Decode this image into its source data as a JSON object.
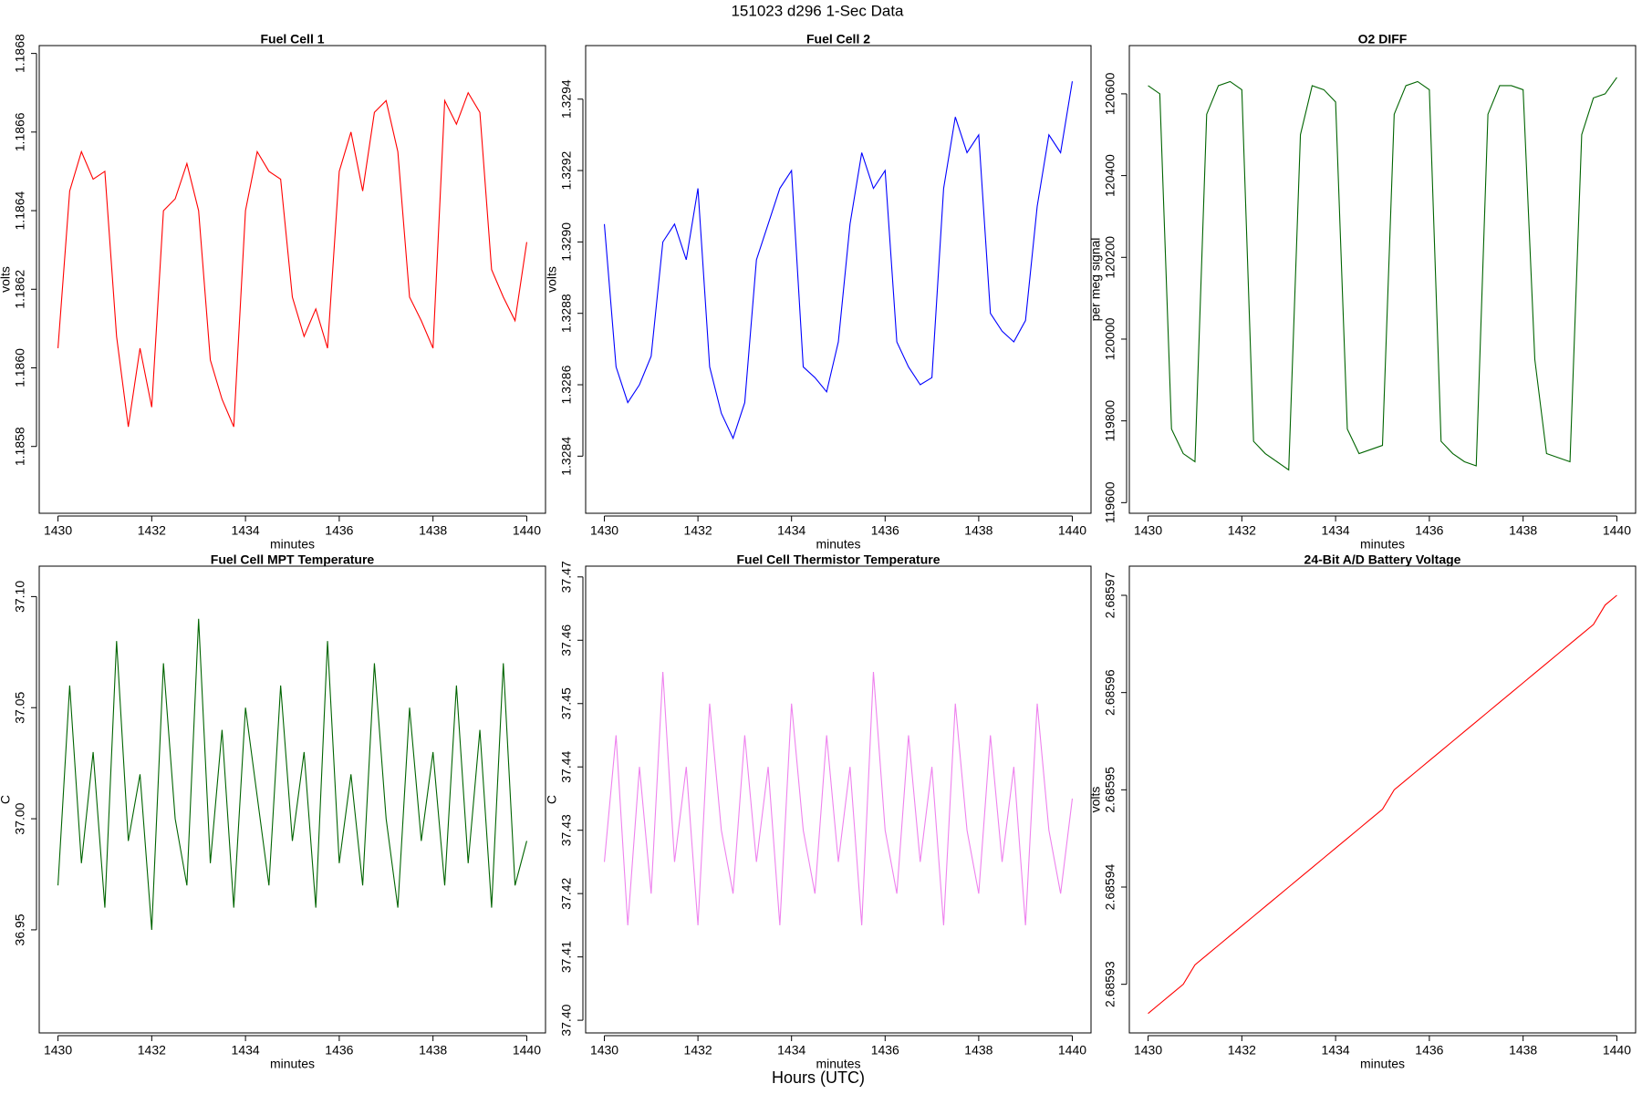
{
  "title": "151023   d296   1-Sec Data",
  "xlabel": "Hours (UTC)",
  "chart_data": [
    {
      "type": "line",
      "title": "Fuel Cell 1",
      "xlabel": "minutes",
      "ylabel": "volts",
      "color": "#ff0000",
      "x": [
        1430,
        1430.25,
        1430.5,
        1430.75,
        1431,
        1431.25,
        1431.5,
        1431.75,
        1432,
        1432.25,
        1432.5,
        1432.75,
        1433,
        1433.25,
        1433.5,
        1433.75,
        1434,
        1434.25,
        1434.5,
        1434.75,
        1435,
        1435.25,
        1435.5,
        1435.75,
        1436,
        1436.25,
        1436.5,
        1436.75,
        1437,
        1437.25,
        1437.5,
        1437.75,
        1438,
        1438.25,
        1438.5,
        1438.75,
        1439,
        1439.25,
        1439.5,
        1439.75,
        1440
      ],
      "values": [
        1.18605,
        1.18645,
        1.18655,
        1.18648,
        1.1865,
        1.18608,
        1.18585,
        1.18605,
        1.1859,
        1.1864,
        1.18643,
        1.18652,
        1.1864,
        1.18602,
        1.18592,
        1.18585,
        1.1864,
        1.18655,
        1.1865,
        1.18648,
        1.18618,
        1.18608,
        1.18615,
        1.18605,
        1.1865,
        1.1866,
        1.18645,
        1.18665,
        1.18668,
        1.18655,
        1.18618,
        1.18612,
        1.18605,
        1.18668,
        1.18662,
        1.1867,
        1.18665,
        1.18625,
        1.18618,
        1.18612,
        1.18632
      ],
      "xlim": [
        1429.6,
        1440.4
      ],
      "ylim": [
        1.18563,
        1.18682
      ],
      "xticks": [
        1430,
        1432,
        1434,
        1436,
        1438,
        1440
      ],
      "yticks": [
        1.1858,
        {
          "value": 1.186,
          "label": "1.1860"
        },
        1.1862,
        1.1864,
        1.1866,
        1.1868
      ]
    },
    {
      "type": "line",
      "title": "Fuel Cell 2",
      "xlabel": "minutes",
      "ylabel": "volts",
      "color": "#0000ff",
      "x": [
        1430,
        1430.25,
        1430.5,
        1430.75,
        1431,
        1431.25,
        1431.5,
        1431.75,
        1432,
        1432.25,
        1432.5,
        1432.75,
        1433,
        1433.25,
        1433.5,
        1433.75,
        1434,
        1434.25,
        1434.5,
        1434.75,
        1435,
        1435.25,
        1435.5,
        1435.75,
        1436,
        1436.25,
        1436.5,
        1436.75,
        1437,
        1437.25,
        1437.5,
        1437.75,
        1438,
        1438.25,
        1438.5,
        1438.75,
        1439,
        1439.25,
        1439.5,
        1439.75,
        1440
      ],
      "values": [
        1.32905,
        1.32865,
        1.32855,
        1.3286,
        1.32868,
        1.329,
        1.32905,
        1.32895,
        1.32915,
        1.32865,
        1.32852,
        1.32845,
        1.32855,
        1.32895,
        1.32905,
        1.32915,
        1.3292,
        1.32865,
        1.32862,
        1.32858,
        1.32872,
        1.32905,
        1.32925,
        1.32915,
        1.3292,
        1.32872,
        1.32865,
        1.3286,
        1.32862,
        1.32915,
        1.32935,
        1.32925,
        1.3293,
        1.3288,
        1.32875,
        1.32872,
        1.32878,
        1.3291,
        1.3293,
        1.32925,
        1.32945
      ],
      "xlim": [
        1429.6,
        1440.4
      ],
      "ylim": [
        1.32824,
        1.32955
      ],
      "xticks": [
        1430,
        1432,
        1434,
        1436,
        1438,
        1440
      ],
      "yticks": [
        1.3284,
        1.3286,
        1.3288,
        {
          "value": 1.329,
          "label": "1.3290"
        },
        1.3292,
        1.3294
      ]
    },
    {
      "type": "line",
      "title": "O2 DIFF",
      "xlabel": "minutes",
      "ylabel": "per meg signal",
      "color": "#006400",
      "x": [
        1430,
        1430.25,
        1430.5,
        1430.75,
        1431,
        1431.25,
        1431.5,
        1431.75,
        1432,
        1432.25,
        1432.5,
        1432.75,
        1433,
        1433.25,
        1433.5,
        1433.75,
        1434,
        1434.25,
        1434.5,
        1434.75,
        1435,
        1435.25,
        1435.5,
        1435.75,
        1436,
        1436.25,
        1436.5,
        1436.75,
        1437,
        1437.25,
        1437.5,
        1437.75,
        1438,
        1438.25,
        1438.5,
        1438.75,
        1439,
        1439.25,
        1439.5,
        1439.75,
        1440
      ],
      "values": [
        120620,
        120600,
        119780,
        119720,
        119700,
        120550,
        120620,
        120630,
        120610,
        119750,
        119720,
        119700,
        119680,
        120500,
        120620,
        120610,
        120580,
        119780,
        119720,
        119730,
        119740,
        120550,
        120620,
        120630,
        120610,
        119750,
        119720,
        119700,
        119690,
        120550,
        120620,
        120620,
        120610,
        119950,
        119720,
        119710,
        119700,
        120500,
        120590,
        120600,
        120640
      ],
      "xlim": [
        1429.6,
        1440.4
      ],
      "ylim": [
        119574,
        120718
      ],
      "xticks": [
        1430,
        1432,
        1434,
        1436,
        1438,
        1440
      ],
      "yticks": [
        119600,
        119800,
        120000,
        120200,
        120400,
        120600
      ]
    },
    {
      "type": "line",
      "title": "Fuel Cell MPT Temperature",
      "xlabel": "minutes",
      "ylabel": "C",
      "color": "#006400",
      "x": [
        1430,
        1430.25,
        1430.5,
        1430.75,
        1431,
        1431.25,
        1431.5,
        1431.75,
        1432,
        1432.25,
        1432.5,
        1432.75,
        1433,
        1433.25,
        1433.5,
        1433.75,
        1434,
        1434.25,
        1434.5,
        1434.75,
        1435,
        1435.25,
        1435.5,
        1435.75,
        1436,
        1436.25,
        1436.5,
        1436.75,
        1437,
        1437.25,
        1437.5,
        1437.75,
        1438,
        1438.25,
        1438.5,
        1438.75,
        1439,
        1439.25,
        1439.5,
        1439.75,
        1440
      ],
      "values": [
        36.97,
        37.06,
        36.98,
        37.03,
        36.96,
        37.08,
        36.99,
        37.02,
        36.95,
        37.07,
        37.0,
        36.97,
        37.09,
        36.98,
        37.04,
        36.96,
        37.05,
        37.01,
        36.97,
        37.06,
        36.99,
        37.03,
        36.96,
        37.08,
        36.98,
        37.02,
        36.97,
        37.07,
        37.0,
        36.96,
        37.05,
        36.99,
        37.03,
        36.97,
        37.06,
        36.98,
        37.04,
        36.96,
        37.07,
        36.97,
        36.99
      ],
      "xlim": [
        1429.6,
        1440.4
      ],
      "ylim": [
        36.9036,
        37.1137
      ],
      "xticks": [
        1430,
        1432,
        1434,
        1436,
        1438,
        1440
      ],
      "yticks": [
        36.95,
        {
          "value": 37,
          "label": "37.00"
        },
        37.05,
        {
          "value": 37.1,
          "label": "37.10"
        }
      ]
    },
    {
      "type": "line",
      "title": "Fuel Cell Thermistor Temperature",
      "xlabel": "minutes",
      "ylabel": "C",
      "color": "#ee82ee",
      "x": [
        1430,
        1430.25,
        1430.5,
        1430.75,
        1431,
        1431.25,
        1431.5,
        1431.75,
        1432,
        1432.25,
        1432.5,
        1432.75,
        1433,
        1433.25,
        1433.5,
        1433.75,
        1434,
        1434.25,
        1434.5,
        1434.75,
        1435,
        1435.25,
        1435.5,
        1435.75,
        1436,
        1436.25,
        1436.5,
        1436.75,
        1437,
        1437.25,
        1437.5,
        1437.75,
        1438,
        1438.25,
        1438.5,
        1438.75,
        1439,
        1439.25,
        1439.5,
        1439.75,
        1440
      ],
      "values": [
        37.425,
        37.445,
        37.415,
        37.44,
        37.42,
        37.455,
        37.425,
        37.44,
        37.415,
        37.45,
        37.43,
        37.42,
        37.445,
        37.425,
        37.44,
        37.415,
        37.45,
        37.43,
        37.42,
        37.445,
        37.425,
        37.44,
        37.415,
        37.455,
        37.43,
        37.42,
        37.445,
        37.425,
        37.44,
        37.415,
        37.45,
        37.43,
        37.42,
        37.445,
        37.425,
        37.44,
        37.415,
        37.45,
        37.43,
        37.42,
        37.435
      ],
      "xlim": [
        1429.6,
        1440.4
      ],
      "ylim": [
        37.398,
        37.4717
      ],
      "xticks": [
        1430,
        1432,
        1434,
        1436,
        1438,
        1440
      ],
      "yticks": [
        {
          "value": 37.4,
          "label": "37.40"
        },
        37.41,
        37.42,
        37.43,
        37.44,
        37.45,
        37.46,
        37.47
      ]
    },
    {
      "type": "line",
      "title": "24-Bit A/D Battery Voltage",
      "xlabel": "minutes",
      "ylabel": "volts",
      "color": "#ff0000",
      "x": [
        1430,
        1430.25,
        1430.5,
        1430.75,
        1431,
        1431.25,
        1431.5,
        1431.75,
        1432,
        1432.25,
        1432.5,
        1432.75,
        1433,
        1433.25,
        1433.5,
        1433.75,
        1434,
        1434.25,
        1434.5,
        1434.75,
        1435,
        1435.25,
        1435.5,
        1435.75,
        1436,
        1436.25,
        1436.5,
        1436.75,
        1437,
        1437.25,
        1437.5,
        1437.75,
        1438,
        1438.25,
        1438.5,
        1438.75,
        1439,
        1439.25,
        1439.5,
        1439.75,
        1440
      ],
      "values": [
        2.685927,
        2.685928,
        2.685929,
        2.68593,
        2.685932,
        2.685933,
        2.685934,
        2.685935,
        2.685936,
        2.685937,
        2.685938,
        2.685939,
        2.68594,
        2.685941,
        2.685942,
        2.685943,
        2.685944,
        2.685945,
        2.685946,
        2.685947,
        2.685948,
        2.68595,
        2.685951,
        2.685952,
        2.685953,
        2.685954,
        2.685955,
        2.685956,
        2.685957,
        2.685958,
        2.685959,
        2.68596,
        2.685961,
        2.685962,
        2.685963,
        2.685964,
        2.685965,
        2.685966,
        2.685967,
        2.685969,
        2.68597
      ],
      "xlim": [
        1429.6,
        1440.4
      ],
      "ylim": [
        2.685925,
        2.685973
      ],
      "xticks": [
        1430,
        1432,
        1434,
        1436,
        1438,
        1440
      ],
      "yticks": [
        2.68593,
        2.68594,
        2.68595,
        2.68596,
        2.68597
      ]
    }
  ]
}
